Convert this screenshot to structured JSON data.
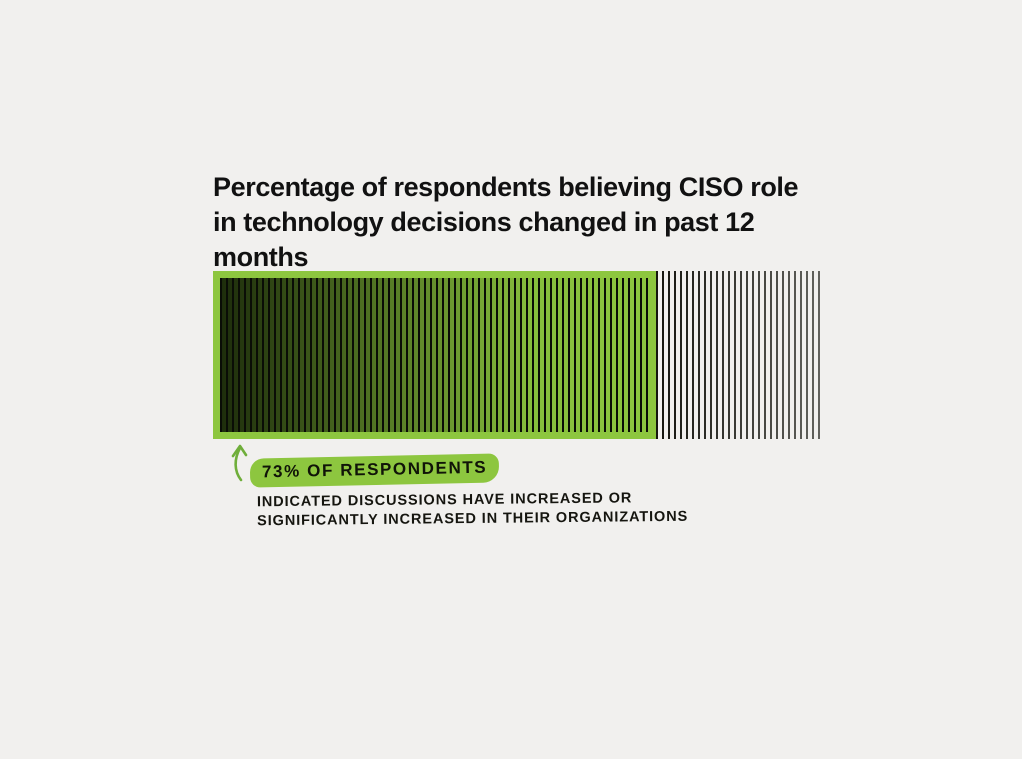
{
  "page": {
    "background": "#f1f0ee"
  },
  "colors": {
    "accent_green": "#8dc63f",
    "arrow_green": "#6fae3a",
    "ink": "#111111"
  },
  "chart_data": {
    "type": "bar",
    "title": "Percentage of respondents believing CISO role in technology decisions changed in past 12 months",
    "categories": [
      "Respondents believing CISO role in technology decisions changed"
    ],
    "series": [
      {
        "name": "Indicated discussions have increased or significantly increased",
        "values": [
          73
        ]
      }
    ],
    "value_pct": 73,
    "value_label": "73%",
    "xlim": [
      0,
      100
    ],
    "legend": "none",
    "grid": "off",
    "annotation": {
      "highlight_label": "73% OF RESPONDENTS",
      "detail_line1": "INDICATED DISCUSSIONS HAVE INCREASED OR",
      "detail_line2": "SIGNIFICANTLY INCREASED IN THEIR ORGANIZATIONS"
    }
  }
}
